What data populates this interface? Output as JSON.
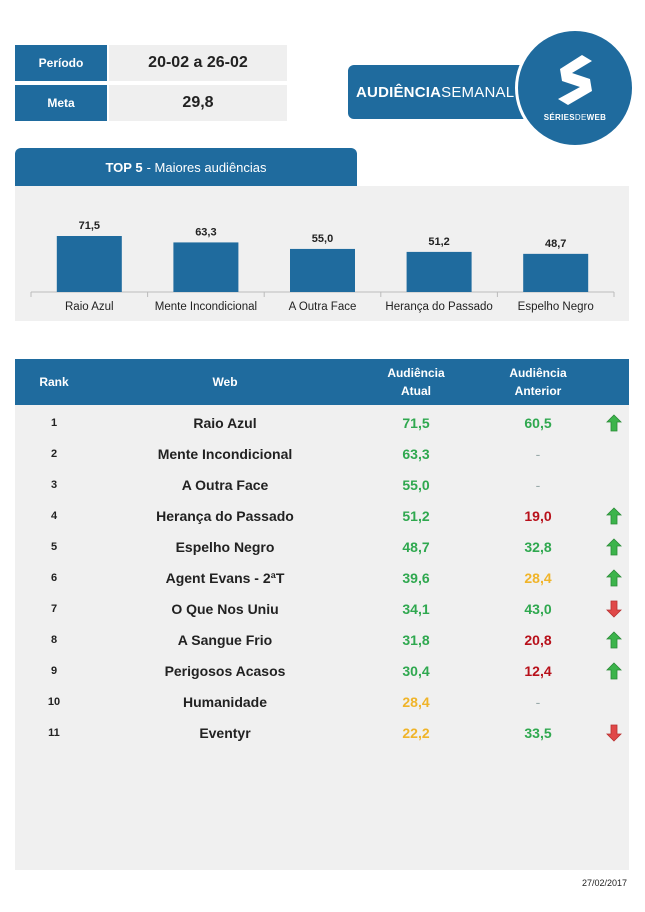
{
  "info": {
    "period_label": "Período",
    "period_value": "20-02 a 26-02",
    "meta_label": "Meta",
    "meta_value": "29,8"
  },
  "brand": {
    "title_bold": "AUDIÊNCIA",
    "title_light": "SEMANAL",
    "logo_bold_1": "SÉRIES",
    "logo_light": "DE",
    "logo_bold_2": "WEB",
    "logo_icon": "s-logo-icon"
  },
  "top5": {
    "header_bold": "TOP 5",
    "header_rest": "- Maiores audiências"
  },
  "chart_data": {
    "type": "bar",
    "categories": [
      "Raio Azul",
      "Mente Incondicional",
      "A Outra Face",
      "Herança do Passado",
      "Espelho Negro"
    ],
    "values": [
      71.5,
      63.3,
      55.0,
      51.2,
      48.7
    ],
    "labels": [
      "71,5",
      "63,3",
      "55,0",
      "51,2",
      "48,7"
    ],
    "title": "",
    "xlabel": "",
    "ylabel": "",
    "ylim": [
      0,
      100
    ],
    "grid": false,
    "bar_color": "#1f6b9e"
  },
  "table": {
    "headers": {
      "rank": "Rank",
      "web": "Web",
      "current": "Audiência Atual",
      "previous": "Audiência Anterior"
    },
    "rows": [
      {
        "rank": "1",
        "web": "Raio Azul",
        "current": "71,5",
        "current_color": "green",
        "previous": "60,5",
        "previous_color": "green",
        "trend": "up"
      },
      {
        "rank": "2",
        "web": "Mente Incondicional",
        "current": "63,3",
        "current_color": "green",
        "previous": "-",
        "previous_color": "gray",
        "trend": ""
      },
      {
        "rank": "3",
        "web": "A Outra Face",
        "current": "55,0",
        "current_color": "green",
        "previous": "-",
        "previous_color": "gray",
        "trend": ""
      },
      {
        "rank": "4",
        "web": "Herança do Passado",
        "current": "51,2",
        "current_color": "green",
        "previous": "19,0",
        "previous_color": "red",
        "trend": "up"
      },
      {
        "rank": "5",
        "web": "Espelho Negro",
        "current": "48,7",
        "current_color": "green",
        "previous": "32,8",
        "previous_color": "green",
        "trend": "up"
      },
      {
        "rank": "6",
        "web": "Agent Evans - 2ªT",
        "current": "39,6",
        "current_color": "green",
        "previous": "28,4",
        "previous_color": "orange",
        "trend": "up"
      },
      {
        "rank": "7",
        "web": "O Que Nos Uniu",
        "current": "34,1",
        "current_color": "green",
        "previous": "43,0",
        "previous_color": "green",
        "trend": "down"
      },
      {
        "rank": "8",
        "web": "A Sangue Frio",
        "current": "31,8",
        "current_color": "green",
        "previous": "20,8",
        "previous_color": "red",
        "trend": "up"
      },
      {
        "rank": "9",
        "web": "Perigosos Acasos",
        "current": "30,4",
        "current_color": "green",
        "previous": "12,4",
        "previous_color": "red",
        "trend": "up"
      },
      {
        "rank": "10",
        "web": "Humanidade",
        "current": "28,4",
        "current_color": "orange",
        "previous": "-",
        "previous_color": "gray",
        "trend": ""
      },
      {
        "rank": "11",
        "web": "Eventyr",
        "current": "22,2",
        "current_color": "orange",
        "previous": "33,5",
        "previous_color": "green",
        "trend": "down"
      }
    ]
  },
  "footer": {
    "date": "27/02/2017"
  },
  "colors": {
    "brand_blue": "#1f6b9e",
    "panel_gray": "#f0f0f0",
    "green": "#2fa84f",
    "orange": "#f0b429",
    "red": "#b8101a",
    "arrow_up": "#3cb44b",
    "arrow_down": "#e04848"
  }
}
